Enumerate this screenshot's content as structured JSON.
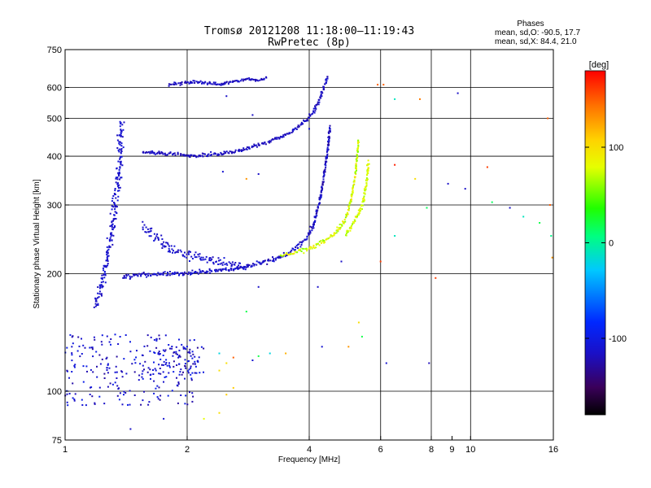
{
  "chart_data": {
    "type": "scatter",
    "title": "Tromsø 20121208 11:18:00–11:19:43",
    "subtitle": "RwPretec (8p)",
    "xlabel": "Frequency [MHz]",
    "ylabel": "Stationary phase Virtual Height [km]",
    "xscale": "log",
    "yscale": "log",
    "xlim": [
      1,
      16
    ],
    "ylim": [
      75,
      750
    ],
    "xticks": [
      1,
      2,
      4,
      6,
      8,
      9,
      10,
      16
    ],
    "xtick_labels": [
      "1",
      "2",
      "4",
      "6",
      "8",
      "9",
      "10",
      "16"
    ],
    "xgrid": [
      2,
      4,
      6,
      8,
      10
    ],
    "yticks": [
      75,
      100,
      200,
      300,
      400,
      500,
      600,
      750
    ],
    "ytick_labels": [
      "75",
      "100",
      "200",
      "300",
      "400",
      "500",
      "600",
      "750"
    ],
    "ygrid": [
      100,
      200,
      300,
      400,
      500,
      600
    ],
    "grid": true,
    "stats": {
      "heading": "Phases",
      "line_o": "mean, sd,O: -90.5, 17.7",
      "line_x": "mean, sd,X:  84.4, 21.0"
    },
    "colorbar": {
      "label": "[deg]",
      "range": [
        -180,
        180
      ],
      "ticks": [
        100,
        0,
        -100
      ],
      "tick_labels": [
        "100",
        "0",
        "-100"
      ]
    },
    "series": [
      {
        "kind": "curve",
        "color_scale": [
          -120,
          -105
        ],
        "x": [
          1.38,
          1.37,
          1.36,
          1.34,
          1.32,
          1.3,
          1.28,
          1.26,
          1.24,
          1.22,
          1.2,
          1.19
        ],
        "y": [
          490,
          420,
          370,
          330,
          290,
          255,
          230,
          210,
          195,
          180,
          170,
          163
        ],
        "spread": [
          0.025,
          0.04
        ]
      },
      {
        "kind": "curve",
        "color_scale": [
          -125,
          -105
        ],
        "x": [
          1.38,
          1.42,
          1.48,
          1.55,
          1.65,
          1.8,
          2.0,
          2.3,
          2.6,
          2.9,
          3.2,
          3.5,
          3.75,
          3.95,
          4.1
        ],
        "y": [
          195,
          197,
          198,
          199,
          200,
          200,
          201,
          203,
          206,
          210,
          216,
          224,
          234,
          248,
          265
        ],
        "spread": [
          0.012,
          0.02
        ]
      },
      {
        "kind": "curve",
        "color_scale": [
          -130,
          -105
        ],
        "x": [
          4.1,
          4.15,
          4.2,
          4.25,
          4.3,
          4.35,
          4.4,
          4.45,
          4.48,
          4.5
        ],
        "y": [
          265,
          280,
          295,
          310,
          330,
          355,
          385,
          420,
          455,
          480
        ],
        "spread": [
          0.006,
          0.02
        ]
      },
      {
        "kind": "curve",
        "color_scale": [
          -125,
          -110
        ],
        "x": [
          1.55,
          1.7,
          1.85,
          2.0,
          2.2,
          2.4,
          2.6,
          2.8,
          3.0,
          3.3,
          3.6,
          3.9,
          4.1,
          4.25,
          4.35,
          4.45
        ],
        "y": [
          410,
          408,
          405,
          402,
          403,
          406,
          410,
          418,
          428,
          442,
          460,
          490,
          520,
          560,
          600,
          640
        ],
        "spread": [
          0.01,
          0.015
        ]
      },
      {
        "kind": "curve",
        "color_scale": [
          -120,
          -105
        ],
        "x": [
          1.55,
          1.65,
          1.75,
          1.85,
          1.95,
          2.05,
          2.15,
          2.25,
          2.4,
          2.6,
          2.8
        ],
        "y": [
          265,
          250,
          238,
          230,
          225,
          222,
          220,
          218,
          214,
          210,
          207
        ],
        "spread": [
          0.03,
          0.04
        ]
      },
      {
        "kind": "curve",
        "color_scale": [
          -125,
          -110
        ],
        "x": [
          1.8,
          1.95,
          2.1,
          2.4,
          2.6,
          2.7,
          2.8,
          3.0,
          3.15
        ],
        "y": [
          610,
          615,
          620,
          612,
          620,
          625,
          630,
          625,
          635
        ],
        "spread": [
          0.01,
          0.012
        ]
      },
      {
        "kind": "curve",
        "color_scale": [
          55,
          100
        ],
        "x": [
          3.4,
          3.7,
          4.0,
          4.3,
          4.6,
          4.85,
          5.0,
          5.1,
          5.2,
          5.25,
          5.3
        ],
        "y": [
          223,
          227,
          232,
          240,
          252,
          270,
          290,
          320,
          360,
          400,
          440
        ],
        "spread": [
          0.005,
          0.02
        ]
      },
      {
        "kind": "curve",
        "color_scale": [
          60,
          90
        ],
        "x": [
          4.9,
          5.1,
          5.3,
          5.45,
          5.55,
          5.6
        ],
        "y": [
          250,
          265,
          285,
          310,
          350,
          390
        ],
        "spread": [
          0.008,
          0.03
        ]
      },
      {
        "kind": "cloud",
        "color_scale": [
          -130,
          -95
        ],
        "x_range": [
          1.0,
          2.1
        ],
        "y_range": [
          92,
          140
        ],
        "count": 230
      },
      {
        "kind": "cloud",
        "color_scale": [
          -130,
          -95
        ],
        "x_range": [
          1.6,
          2.2
        ],
        "y_range": [
          110,
          130
        ],
        "count": 70
      }
    ],
    "sparse_points": [
      {
        "x": 9.3,
        "y": 580,
        "v": -115
      },
      {
        "x": 7.5,
        "y": 560,
        "v": 140
      },
      {
        "x": 6.5,
        "y": 560,
        "v": -10
      },
      {
        "x": 5.9,
        "y": 610,
        "v": 150
      },
      {
        "x": 6.1,
        "y": 610,
        "v": 150
      },
      {
        "x": 15.5,
        "y": 500,
        "v": 150
      },
      {
        "x": 6.5,
        "y": 380,
        "v": 170
      },
      {
        "x": 7.3,
        "y": 350,
        "v": 100
      },
      {
        "x": 8.8,
        "y": 340,
        "v": -115
      },
      {
        "x": 9.7,
        "y": 330,
        "v": -115
      },
      {
        "x": 11.0,
        "y": 375,
        "v": 160
      },
      {
        "x": 11.3,
        "y": 305,
        "v": 15
      },
      {
        "x": 12.5,
        "y": 295,
        "v": -115
      },
      {
        "x": 13.5,
        "y": 280,
        "v": -10
      },
      {
        "x": 14.8,
        "y": 270,
        "v": 20
      },
      {
        "x": 15.8,
        "y": 250,
        "v": 5
      },
      {
        "x": 15.7,
        "y": 300,
        "v": 150
      },
      {
        "x": 15.9,
        "y": 220,
        "v": 130
      },
      {
        "x": 7.8,
        "y": 295,
        "v": 15
      },
      {
        "x": 6.5,
        "y": 250,
        "v": -10
      },
      {
        "x": 8.2,
        "y": 195,
        "v": 160
      },
      {
        "x": 6.0,
        "y": 215,
        "v": 160
      },
      {
        "x": 4.8,
        "y": 215,
        "v": -115
      },
      {
        "x": 4.2,
        "y": 185,
        "v": -115
      },
      {
        "x": 5.3,
        "y": 150,
        "v": 100
      },
      {
        "x": 5.4,
        "y": 138,
        "v": 20
      },
      {
        "x": 4.3,
        "y": 130,
        "v": -110
      },
      {
        "x": 5.0,
        "y": 130,
        "v": 130
      },
      {
        "x": 3.0,
        "y": 185,
        "v": -115
      },
      {
        "x": 2.8,
        "y": 160,
        "v": 20
      },
      {
        "x": 3.5,
        "y": 125,
        "v": 120
      },
      {
        "x": 3.2,
        "y": 125,
        "v": -20
      },
      {
        "x": 3.0,
        "y": 123,
        "v": 20
      },
      {
        "x": 2.9,
        "y": 120,
        "v": -110
      },
      {
        "x": 2.6,
        "y": 122,
        "v": 150
      },
      {
        "x": 2.4,
        "y": 125,
        "v": -20
      },
      {
        "x": 2.4,
        "y": 113,
        "v": 100
      },
      {
        "x": 2.5,
        "y": 118,
        "v": 100
      },
      {
        "x": 2.5,
        "y": 98,
        "v": 110
      },
      {
        "x": 2.6,
        "y": 102,
        "v": 110
      },
      {
        "x": 2.4,
        "y": 88,
        "v": 100
      },
      {
        "x": 2.2,
        "y": 85,
        "v": 80
      },
      {
        "x": 7.9,
        "y": 118,
        "v": -120
      },
      {
        "x": 6.2,
        "y": 118,
        "v": -110
      },
      {
        "x": 2.45,
        "y": 365,
        "v": -110
      },
      {
        "x": 2.8,
        "y": 350,
        "v": 130
      },
      {
        "x": 3.0,
        "y": 360,
        "v": -115
      },
      {
        "x": 2.9,
        "y": 510,
        "v": -115
      },
      {
        "x": 2.5,
        "y": 570,
        "v": -115
      },
      {
        "x": 4.0,
        "y": 470,
        "v": -110
      },
      {
        "x": 1.45,
        "y": 80,
        "v": -115
      },
      {
        "x": 1.75,
        "y": 85,
        "v": -110
      }
    ]
  }
}
